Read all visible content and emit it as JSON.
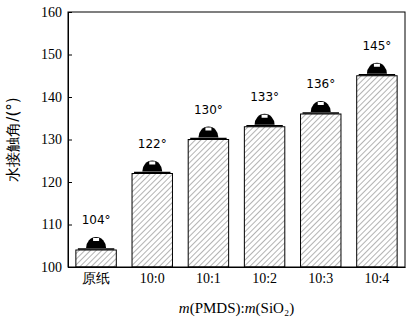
{
  "chart_data": {
    "type": "bar",
    "categories": [
      "原纸",
      "10:0",
      "10:1",
      "10:2",
      "10:3",
      "10:4"
    ],
    "values": [
      104,
      122,
      130,
      133,
      136,
      145
    ],
    "value_labels": [
      "104°",
      "122°",
      "130°",
      "133°",
      "136°",
      "145°"
    ],
    "data_labels": true,
    "color": "#000000",
    "ylim": [
      100,
      160
    ],
    "yticks": [
      100,
      110,
      120,
      130,
      140,
      150,
      160
    ],
    "y_label": "水接触角/(°)",
    "x_label": "m(PMDS):m(SiO₂)",
    "grid": false
  }
}
